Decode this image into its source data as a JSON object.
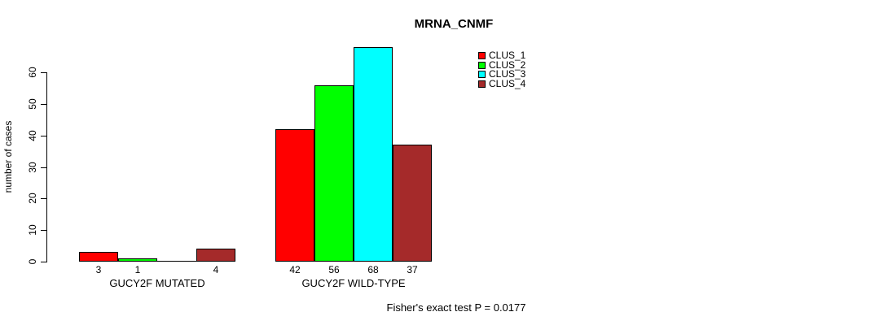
{
  "chart_data": {
    "type": "bar",
    "title": "MRNA_CNMF",
    "ylabel": "number of cases",
    "xlabel": "",
    "ylim": [
      0,
      60
    ],
    "yticks": [
      0,
      10,
      20,
      30,
      40,
      50,
      60
    ],
    "categories": [
      "GUCY2F MUTATED",
      "GUCY2F WILD-TYPE"
    ],
    "series": [
      {
        "name": "CLUS_1",
        "color": "#FF0000",
        "values": [
          3,
          42
        ]
      },
      {
        "name": "CLUS_2",
        "color": "#00FF00",
        "values": [
          1,
          56
        ]
      },
      {
        "name": "CLUS_3",
        "color": "#00FFFF",
        "values": [
          0,
          68
        ]
      },
      {
        "name": "CLUS_4",
        "color": "#A52A2A",
        "values": [
          4,
          37
        ]
      }
    ],
    "bar_value_labels_shown": true,
    "zero_value_labels_hidden": true,
    "grid": false,
    "legend_position": "top-right",
    "footnote": "Fisher's exact test P = 0.0177",
    "background_color": "#FFFFFF",
    "axis_color": "#000000"
  }
}
